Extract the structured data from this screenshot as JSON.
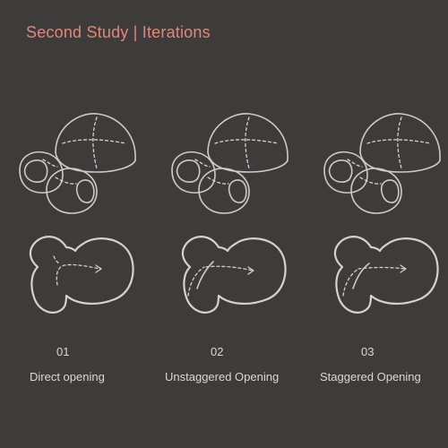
{
  "title": "Second Study | Iterations",
  "colors": {
    "background": "#3d3c3a",
    "title": "#e0877c",
    "line": "#cfcac5",
    "text": "#dcd7d2"
  },
  "iterations": [
    {
      "number": "01",
      "name": "Direct opening"
    },
    {
      "number": "02",
      "name": "Unstaggered Opening"
    },
    {
      "number": "03",
      "name": "Staggered Opening"
    }
  ]
}
